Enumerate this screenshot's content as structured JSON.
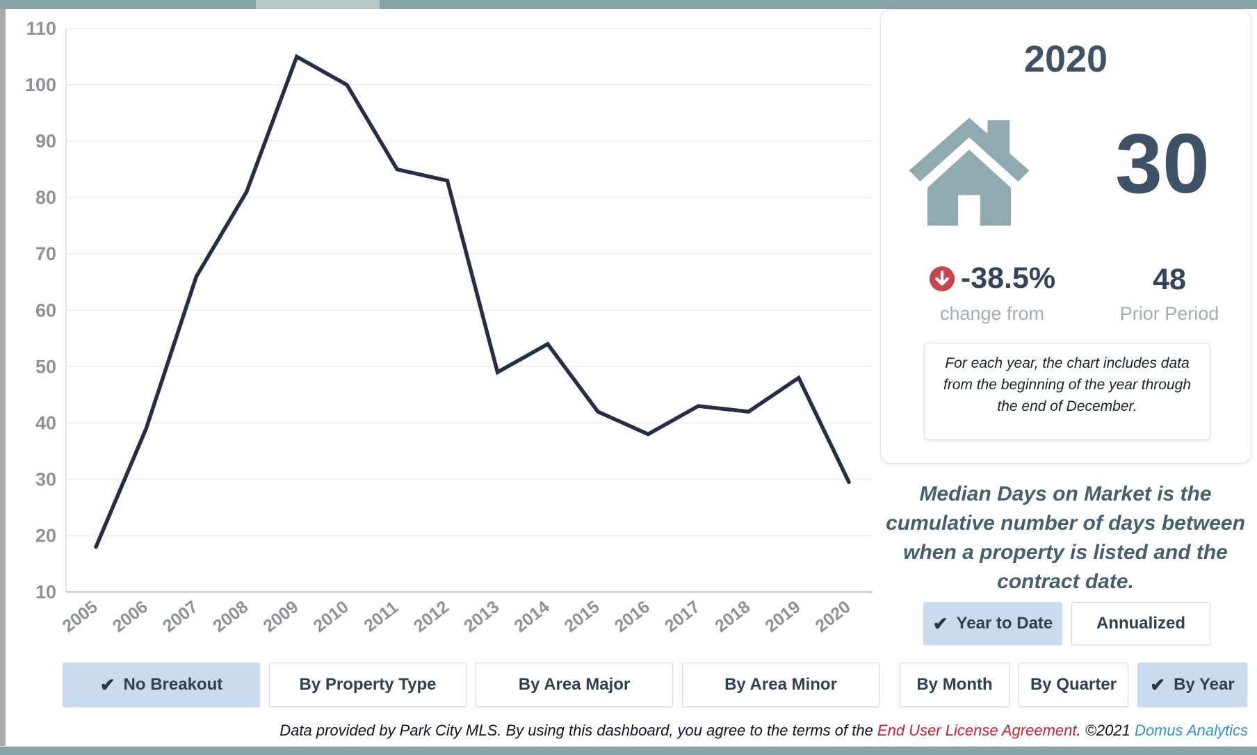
{
  "page": {
    "colors": {
      "top_bar": "#85a4a7",
      "top_bar_light": "#b7c8c9",
      "selected_button_bg": "#c9dbee",
      "line": "#242e47",
      "house_icon": "#8fabb0",
      "down_arrow_icon": "#c9444a",
      "eula_link_red": "#d21f2d",
      "brand_link_blue": "#2f8fe0"
    }
  },
  "chart_data": {
    "type": "line",
    "title": "",
    "series_name": "Median Days on Market",
    "x": [
      "2005",
      "2006",
      "2007",
      "2008",
      "2009",
      "2010",
      "2011",
      "2012",
      "2013",
      "2014",
      "2015",
      "2016",
      "2017",
      "2018",
      "2019",
      "2020"
    ],
    "values": [
      18,
      39,
      66,
      81,
      105,
      100,
      85,
      83,
      49,
      54,
      42,
      38,
      43,
      42,
      48,
      29.5
    ],
    "xlabel": "",
    "ylabel": "",
    "ylim": [
      10,
      110
    ],
    "ytick_step": 10,
    "yticks": [
      10,
      20,
      30,
      40,
      50,
      60,
      70,
      80,
      90,
      100,
      110
    ],
    "grid": true,
    "legend": "none"
  },
  "kpi_card": {
    "year": "2020",
    "value": "30",
    "change_pct": "-38.5%",
    "change_label": "change from",
    "prior_value": "48",
    "prior_label": "Prior Period",
    "note": "For each year, the chart includes data from the beginning of the year through the end of December.",
    "icons": {
      "house": "house-icon",
      "change": "arrow-down-circle-icon",
      "selected_check": "checkmark-icon"
    }
  },
  "description": {
    "text": "Median Days on Market is the cumulative number of days between when a property is listed and the contract date."
  },
  "period_buttons": [
    {
      "label": "Year to Date",
      "selected": true
    },
    {
      "label": "Annualized",
      "selected": false
    }
  ],
  "breakout_buttons": [
    {
      "label": "No Breakout",
      "selected": true
    },
    {
      "label": "By Property Type",
      "selected": false
    },
    {
      "label": "By Area Major",
      "selected": false
    },
    {
      "label": "By Area Minor",
      "selected": false
    },
    {
      "label": "By Month",
      "selected": false
    },
    {
      "label": "By Quarter",
      "selected": false
    },
    {
      "label": "By Year",
      "selected": true
    }
  ],
  "footer": {
    "prefix": "Data provided by Park City MLS.  By using this dashboard, you agree to the terms of the ",
    "eula": "End User License Agreement",
    "middle": ".  ©2021 ",
    "brand": "Domus Analytics"
  }
}
